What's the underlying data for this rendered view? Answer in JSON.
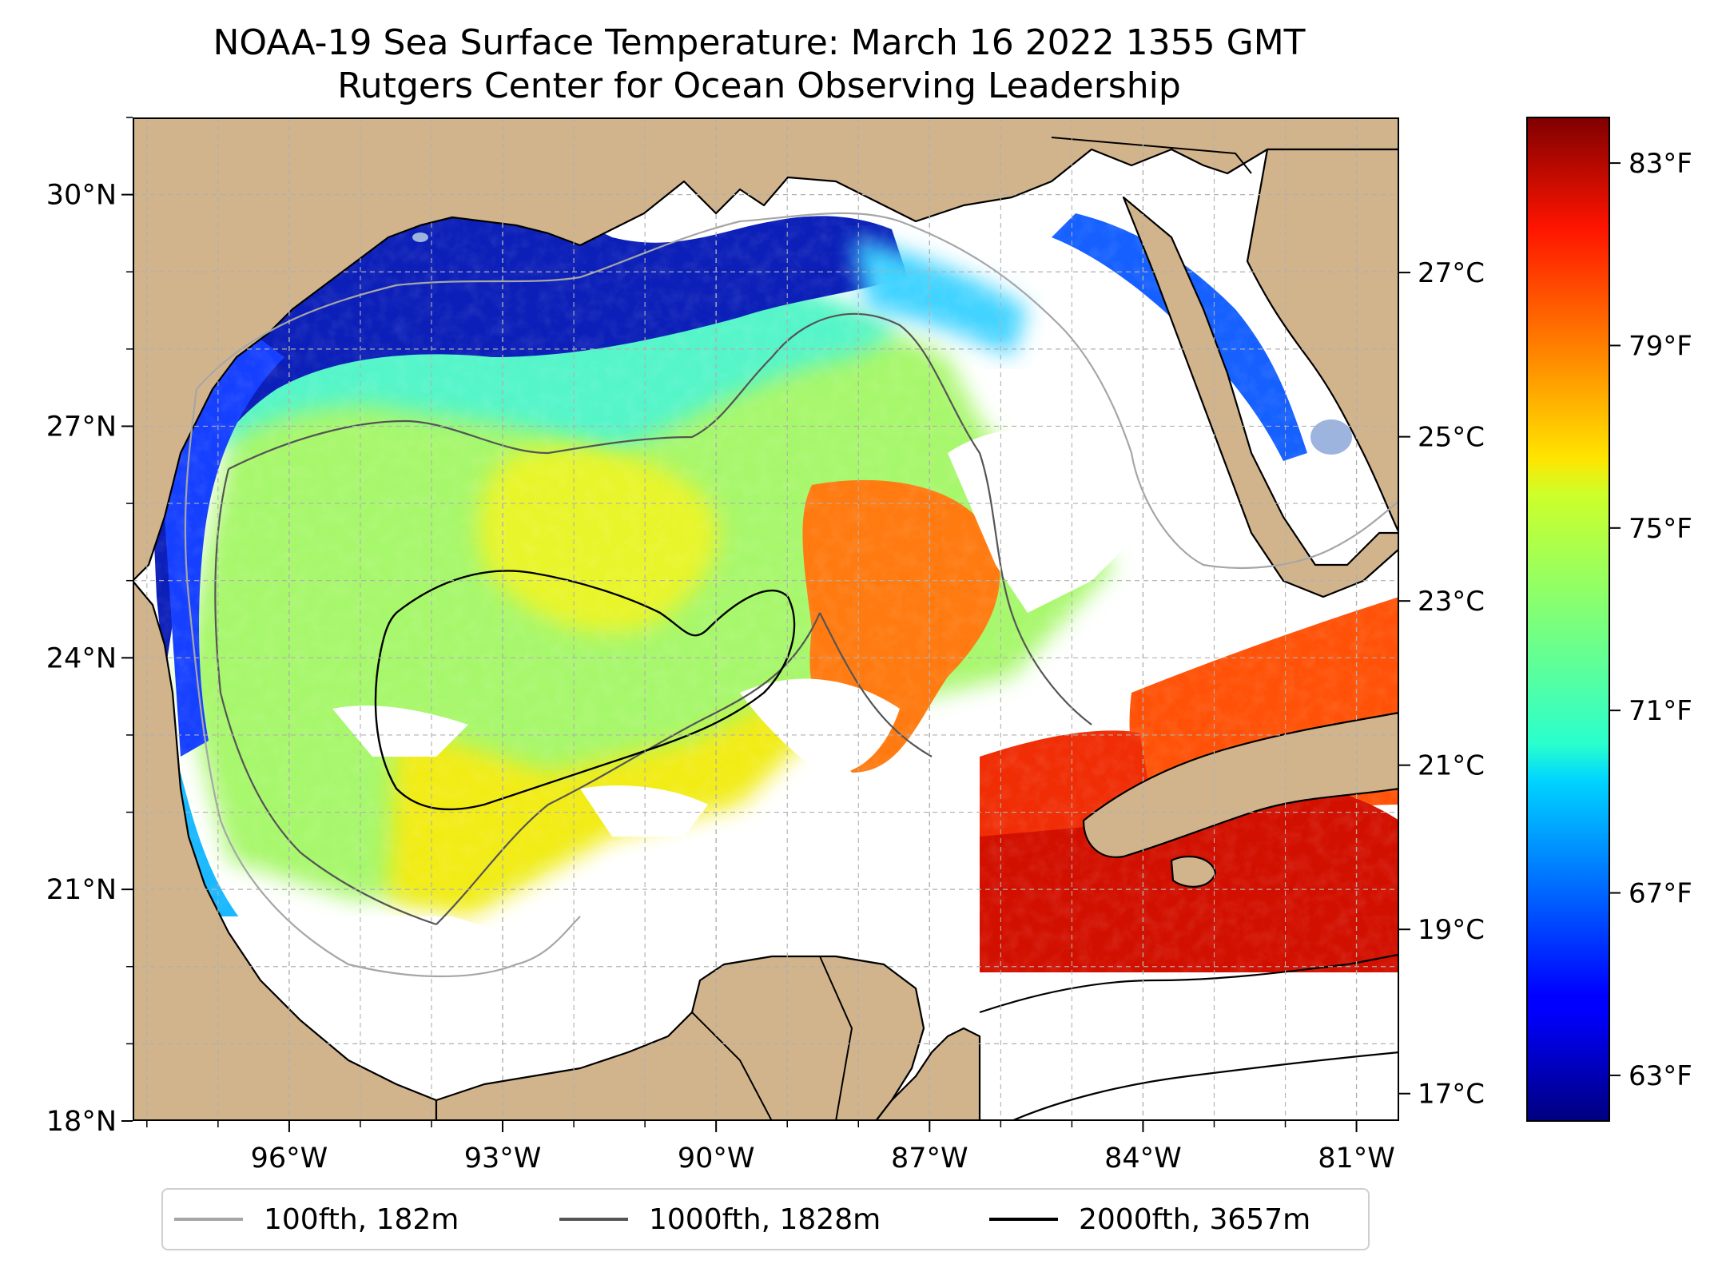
{
  "figure": {
    "title_line1": "NOAA-19 Sea Surface Temperature: March 16 2022 1355 GMT",
    "title_line2": "Rutgers Center for Ocean Observing Leadership"
  },
  "colors": {
    "land": "#d2b48c",
    "no_data": "#ffffff",
    "lakes": "#9db4de",
    "coastline": "#000000",
    "grid": "#b0b0b0"
  },
  "chart_data": {
    "type": "heatmap",
    "map": {
      "lon_range": [
        -98.2,
        -80.4
      ],
      "lat_range": [
        18.0,
        31.0
      ],
      "x_ticks": [
        "96°W",
        "93°W",
        "90°W",
        "87°W",
        "84°W",
        "81°W"
      ],
      "x_tick_values": [
        -96,
        -93,
        -90,
        -87,
        -84,
        -81
      ],
      "y_ticks": [
        "18°N",
        "21°N",
        "24°N",
        "27°N",
        "30°N"
      ],
      "y_tick_values": [
        18,
        21,
        24,
        27,
        30
      ],
      "grid": true
    },
    "colorbar": {
      "colormap": "jet",
      "range_f": [
        62,
        84
      ],
      "f_ticks": [
        "63°F",
        "67°F",
        "71°F",
        "75°F",
        "79°F",
        "83°F"
      ],
      "f_tick_values": [
        63,
        67,
        71,
        75,
        79,
        83
      ],
      "c_ticks": [
        "17°C",
        "19°C",
        "21°C",
        "23°C",
        "25°C",
        "27°C"
      ],
      "c_tick_values": [
        17,
        19,
        21,
        23,
        25,
        27
      ]
    },
    "legend": {
      "placement": "bottom-center",
      "entries": [
        {
          "label": "100fth, 182m",
          "color": "#a6a6a6"
        },
        {
          "label": "1000fth, 1828m",
          "color": "#555555"
        },
        {
          "label": "2000fth, 3657m",
          "color": "#000000"
        }
      ]
    }
  }
}
